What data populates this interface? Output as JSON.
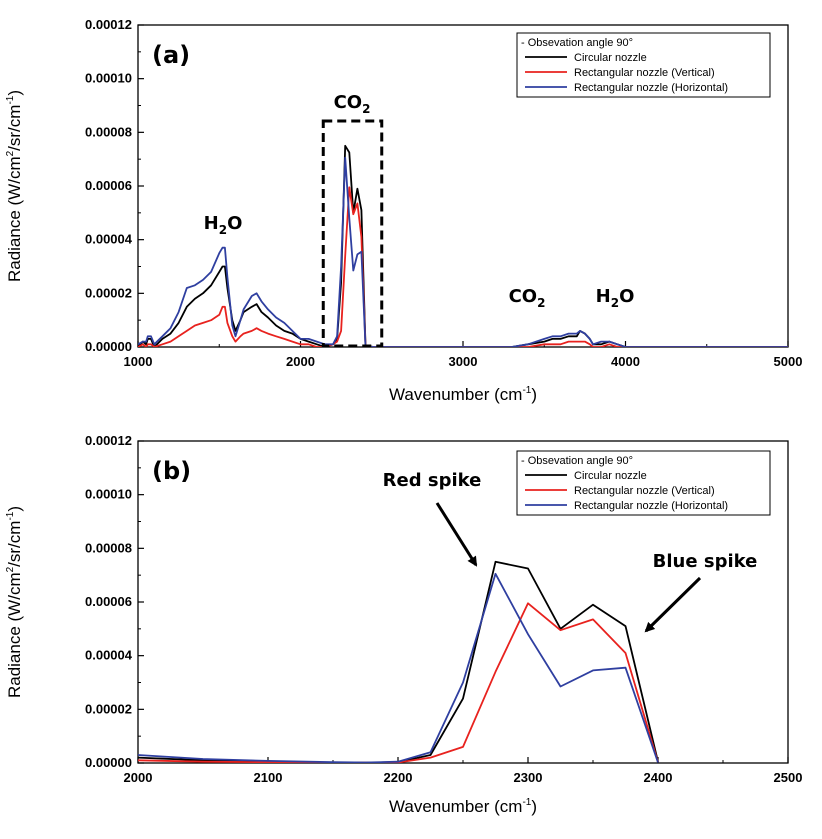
{
  "chart_data": [
    {
      "type": "line",
      "panel_label": "(a)",
      "xlabel": "Wavenumber (cm",
      "xlabel_sup": "-1",
      "xlabel_end": ")",
      "ylabel": "Radiance (W/cm",
      "ylabel_sup1": "2",
      "ylabel_mid": "/sr/cm",
      "ylabel_sup2": "-1",
      "ylabel_end": ")",
      "xlim": [
        1000,
        5000
      ],
      "ylim": [
        0,
        0.00012
      ],
      "xticks": [
        "1000",
        "2000",
        "3000",
        "4000",
        "5000"
      ],
      "yticks": [
        "0.00000",
        "0.00002",
        "0.00004",
        "0.00006",
        "0.00008",
        "0.00010",
        "0.00012"
      ],
      "legend_title": "- Obsevation angle 90°",
      "legend_position": "top-right",
      "annotations": {
        "h2o_left": {
          "main": "H",
          "sub": "2",
          "end": "O"
        },
        "co2_box": {
          "main": "CO",
          "sub": "2"
        },
        "co2_right": {
          "main": "CO",
          "sub": "2"
        },
        "h2o_right": {
          "main": "H",
          "sub": "2",
          "end": "O"
        }
      },
      "dashed_box_x_range": [
        2140,
        2500
      ],
      "series": [
        {
          "name": "Circular nozzle",
          "color": "#000000",
          "x": [
            1000,
            1030,
            1050,
            1060,
            1080,
            1100,
            1150,
            1200,
            1250,
            1300,
            1350,
            1400,
            1450,
            1500,
            1520,
            1535,
            1550,
            1580,
            1600,
            1630,
            1650,
            1700,
            1730,
            1760,
            1800,
            1850,
            1900,
            1950,
            2000,
            2050,
            2100,
            2150,
            2200,
            2225,
            2250,
            2275,
            2300,
            2325,
            2350,
            2375,
            2400,
            2450,
            2500,
            3000,
            3300,
            3400,
            3500,
            3550,
            3600,
            3650,
            3700,
            3720,
            3750,
            3780,
            3800,
            3850,
            3900,
            3950,
            4000,
            4100,
            4200,
            5000
          ],
          "y": [
            0,
            2e-06,
            1e-06,
            3e-06,
            3e-06,
            0,
            3e-06,
            5e-06,
            9e-06,
            1.5e-05,
            1.8e-05,
            2e-05,
            2.3e-05,
            2.8e-05,
            3e-05,
            3e-05,
            2.2e-05,
            1e-05,
            6e-06,
            1e-05,
            1.3e-05,
            1.5e-05,
            1.6e-05,
            1.3e-05,
            1.1e-05,
            8e-06,
            6e-06,
            5e-06,
            3e-06,
            2e-06,
            1e-06,
            0,
            1e-06,
            3e-06,
            2.4e-05,
            7.5e-05,
            7.25e-05,
            5e-05,
            5.9e-05,
            5.1e-05,
            5e-07,
            0,
            0,
            0,
            0,
            1e-06,
            2e-06,
            3e-06,
            3e-06,
            4e-06,
            4e-06,
            6e-06,
            5e-06,
            3e-06,
            1e-06,
            1e-06,
            2e-06,
            1e-06,
            0,
            0,
            0,
            0
          ]
        },
        {
          "name": "Rectangular nozzle (Vertical)",
          "color": "#e8221e",
          "x": [
            1000,
            1030,
            1050,
            1060,
            1080,
            1100,
            1150,
            1200,
            1250,
            1300,
            1350,
            1400,
            1450,
            1500,
            1520,
            1535,
            1550,
            1580,
            1600,
            1630,
            1650,
            1700,
            1730,
            1760,
            1800,
            1850,
            1900,
            1950,
            2000,
            2050,
            2100,
            2150,
            2200,
            2225,
            2250,
            2275,
            2300,
            2325,
            2350,
            2375,
            2400,
            2450,
            2500,
            3000,
            3300,
            3400,
            3500,
            3550,
            3600,
            3650,
            3700,
            3720,
            3750,
            3780,
            3800,
            3850,
            3900,
            3950,
            4000,
            4100,
            4200,
            5000
          ],
          "y": [
            0,
            1e-06,
            0,
            1e-06,
            1e-06,
            0,
            1e-06,
            2e-06,
            4e-06,
            6e-06,
            8e-06,
            9e-06,
            1e-05,
            1.2e-05,
            1.5e-05,
            1.5e-05,
            9e-06,
            4e-06,
            2e-06,
            4e-06,
            5e-06,
            6e-06,
            7e-06,
            6e-06,
            5e-06,
            4e-06,
            3e-06,
            2e-06,
            1e-06,
            1e-06,
            0,
            0,
            1e-06,
            2e-06,
            6e-06,
            3.4e-05,
            5.95e-05,
            4.95e-05,
            5.35e-05,
            4.1e-05,
            3e-07,
            0,
            0,
            0,
            0,
            0,
            1e-06,
            1e-06,
            1e-06,
            2e-06,
            2e-06,
            2e-06,
            2e-06,
            1e-06,
            0,
            0,
            1e-06,
            0,
            0,
            0,
            0,
            0
          ]
        },
        {
          "name": "Rectangular nozzle (Horizontal)",
          "color": "#2f3fa0",
          "x": [
            1000,
            1030,
            1050,
            1060,
            1080,
            1100,
            1150,
            1200,
            1250,
            1300,
            1350,
            1400,
            1450,
            1500,
            1520,
            1535,
            1550,
            1580,
            1600,
            1630,
            1650,
            1700,
            1730,
            1760,
            1800,
            1850,
            1900,
            1950,
            2000,
            2050,
            2100,
            2150,
            2200,
            2225,
            2250,
            2275,
            2300,
            2325,
            2350,
            2375,
            2400,
            2450,
            2500,
            3000,
            3300,
            3400,
            3500,
            3550,
            3600,
            3650,
            3700,
            3720,
            3750,
            3780,
            3800,
            3850,
            3900,
            3950,
            4000,
            4100,
            4200,
            5000
          ],
          "y": [
            1e-06,
            2e-06,
            2e-06,
            4e-06,
            4e-06,
            1e-06,
            4e-06,
            7e-06,
            1.3e-05,
            2.2e-05,
            2.3e-05,
            2.5e-05,
            2.8e-05,
            3.5e-05,
            3.7e-05,
            3.7e-05,
            2.6e-05,
            8e-06,
            4e-06,
            1e-05,
            1.4e-05,
            1.9e-05,
            2e-05,
            1.7e-05,
            1.4e-05,
            1.1e-05,
            9e-06,
            6e-06,
            3e-06,
            3e-06,
            2e-06,
            1e-06,
            1e-06,
            4e-06,
            3e-05,
            7.05e-05,
            4.8e-05,
            2.85e-05,
            3.45e-05,
            3.55e-05,
            2e-07,
            0,
            0,
            0,
            0,
            1e-06,
            3e-06,
            4e-06,
            4e-06,
            5e-06,
            5e-06,
            6e-06,
            5e-06,
            3e-06,
            1e-06,
            2e-06,
            2e-06,
            1e-06,
            0,
            0,
            0,
            0
          ]
        }
      ]
    },
    {
      "type": "line",
      "panel_label": "(b)",
      "xlabel": "Wavenumber (cm",
      "xlabel_sup": "-1",
      "xlabel_end": ")",
      "ylabel": "Radiance (W/cm",
      "ylabel_sup1": "2",
      "ylabel_mid": "/sr/cm",
      "ylabel_sup2": "-1",
      "ylabel_end": ")",
      "xlim": [
        2000,
        2500
      ],
      "ylim": [
        0,
        0.00012
      ],
      "xticks": [
        "2000",
        "2100",
        "2200",
        "2300",
        "2400",
        "2500"
      ],
      "yticks": [
        "0.00000",
        "0.00002",
        "0.00004",
        "0.00006",
        "0.00008",
        "0.00010",
        "0.00012"
      ],
      "legend_title": "- Obsevation angle 90°",
      "legend_position": "top-right",
      "annotations": {
        "red_spike": "Red spike",
        "blue_spike": "Blue spike"
      },
      "series": [
        {
          "name": "Circular nozzle",
          "color": "#000000",
          "x": [
            2000,
            2050,
            2100,
            2150,
            2175,
            2200,
            2225,
            2250,
            2275,
            2300,
            2325,
            2350,
            2375,
            2400
          ],
          "y": [
            2e-06,
            1e-06,
            5e-07,
            2e-07,
            1e-07,
            3e-07,
            3e-06,
            2.4e-05,
            7.5e-05,
            7.25e-05,
            5e-05,
            5.9e-05,
            5.1e-05,
            5e-07
          ]
        },
        {
          "name": "Rectangular nozzle (Vertical)",
          "color": "#e8221e",
          "x": [
            2000,
            2050,
            2100,
            2150,
            2175,
            2200,
            2225,
            2250,
            2275,
            2300,
            2325,
            2350,
            2375,
            2400
          ],
          "y": [
            1e-06,
            5e-07,
            3e-07,
            1e-07,
            1e-07,
            2e-07,
            2e-06,
            6e-06,
            3.4e-05,
            5.95e-05,
            4.95e-05,
            5.35e-05,
            4.1e-05,
            3e-07
          ]
        },
        {
          "name": "Rectangular nozzle (Horizontal)",
          "color": "#2f3fa0",
          "x": [
            2000,
            2050,
            2100,
            2150,
            2175,
            2200,
            2225,
            2250,
            2275,
            2300,
            2325,
            2350,
            2375,
            2400
          ],
          "y": [
            3e-06,
            1.5e-06,
            8e-07,
            3e-07,
            2e-07,
            5e-07,
            4e-06,
            3e-05,
            7.05e-05,
            4.8e-05,
            2.85e-05,
            3.45e-05,
            3.55e-05,
            2e-07
          ]
        }
      ]
    }
  ]
}
